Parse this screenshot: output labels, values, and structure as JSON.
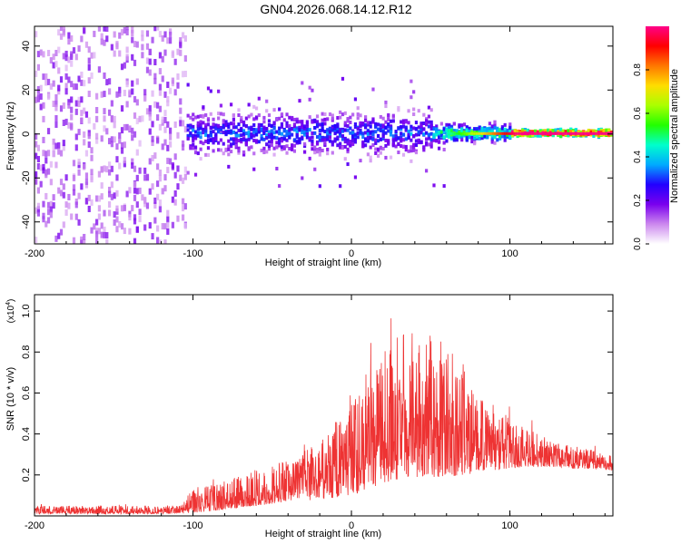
{
  "title": "GN04.2026.068.14.12.R12",
  "chart_data": [
    {
      "type": "heatmap",
      "xlabel": "Height of straight line (km)",
      "ylabel": "Frequency (Hz)",
      "xlim": [
        -200,
        165
      ],
      "ylim": [
        -50,
        49
      ],
      "xticks": [
        "-200",
        "-100",
        "0",
        "100"
      ],
      "yticks": [
        "-40",
        "-20",
        "0",
        "20",
        "40"
      ],
      "colorbar": {
        "label": "Normalized spectral amplitude",
        "range": [
          0,
          1
        ],
        "ticks": [
          "0.0",
          "0.2",
          "0.4",
          "0.6",
          "0.8"
        ],
        "colors": [
          "#ffffff",
          "#cc88ee",
          "#7a00ee",
          "#2200ff",
          "#00aaff",
          "#00ffcc",
          "#22ff00",
          "#aaff00",
          "#ffdd00",
          "#ff7700",
          "#ff0000",
          "#ff0088"
        ]
      },
      "regions": [
        {
          "x": [
            -200,
            -105
          ],
          "description_freq_spread": [
            -50,
            49
          ],
          "amplitude": 0.1
        },
        {
          "x": [
            -105,
            50
          ],
          "description_freq_spread": [
            -10,
            10
          ],
          "amplitude": 0.3
        },
        {
          "x": [
            50,
            100
          ],
          "description_freq_spread": [
            -4,
            4
          ],
          "amplitude": 0.5
        },
        {
          "x": [
            100,
            165
          ],
          "description_freq_spread": [
            -1.5,
            1.5
          ],
          "amplitude": 0.95
        }
      ]
    },
    {
      "type": "line",
      "xlabel": "Height of straight line (km)",
      "ylabel": "SNR (10 * v/v)",
      "yscale_label": "(x10",
      "yscale_exp": "4",
      "xlim": [
        -200,
        165
      ],
      "ylim": [
        0,
        10800
      ],
      "xticks": [
        "-200",
        "-100",
        "0",
        "100"
      ],
      "yticks": [
        "0.2",
        "0.4",
        "0.6",
        "0.8",
        "1.0"
      ],
      "color": "#ee3333",
      "envelope": {
        "x": [
          -200,
          -110,
          -100,
          -80,
          -60,
          -40,
          -20,
          -10,
          0,
          10,
          20,
          30,
          40,
          50,
          60,
          70,
          80,
          90,
          100,
          110,
          120,
          130,
          140,
          150,
          165
        ],
        "low": [
          100,
          100,
          150,
          300,
          500,
          700,
          800,
          900,
          1000,
          1300,
          1600,
          1800,
          1900,
          1900,
          1900,
          2000,
          2100,
          2200,
          2300,
          2400,
          2400,
          2400,
          2300,
          2300,
          2200
        ],
        "high": [
          500,
          500,
          1300,
          1700,
          2300,
          2700,
          3600,
          4500,
          6000,
          7200,
          8200,
          8800,
          9200,
          8800,
          8500,
          7300,
          5800,
          5300,
          4800,
          4300,
          3900,
          3600,
          3400,
          3300,
          2900
        ]
      }
    }
  ]
}
